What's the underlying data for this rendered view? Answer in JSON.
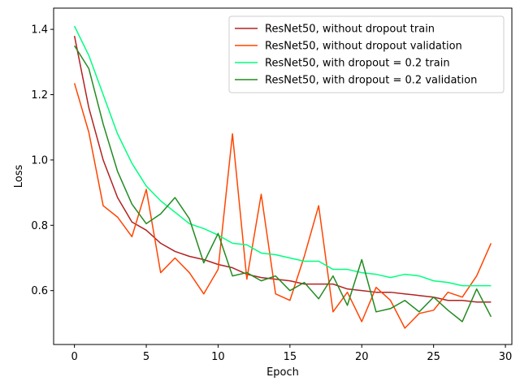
{
  "chart_data": {
    "type": "line",
    "title": "",
    "xlabel": "Epoch",
    "ylabel": "Loss",
    "xlim": [
      -1.45,
      30.45
    ],
    "ylim": [
      0.435,
      1.465
    ],
    "xticks": [
      0,
      5,
      10,
      15,
      20,
      25,
      30
    ],
    "yticks": [
      0.6,
      0.8,
      1.0,
      1.2,
      1.4
    ],
    "ytick_labels": [
      "0.6",
      "0.8",
      "1.0",
      "1.2",
      "1.4"
    ],
    "grid": false,
    "legend_position": "top-right",
    "x": [
      0,
      1,
      2,
      3,
      4,
      5,
      6,
      7,
      8,
      9,
      10,
      11,
      12,
      13,
      14,
      15,
      16,
      17,
      18,
      19,
      20,
      21,
      22,
      23,
      24,
      25,
      26,
      27,
      28,
      29
    ],
    "series": [
      {
        "name": "ResNet50, without dropout train",
        "color": "#b22222",
        "values": [
          1.38,
          1.16,
          1.0,
          0.885,
          0.81,
          0.785,
          0.745,
          0.72,
          0.705,
          0.695,
          0.68,
          0.67,
          0.65,
          0.64,
          0.635,
          0.63,
          0.62,
          0.62,
          0.62,
          0.605,
          0.6,
          0.595,
          0.595,
          0.59,
          0.585,
          0.58,
          0.57,
          0.57,
          0.565,
          0.565
        ]
      },
      {
        "name": "ResNet50, without dropout validation",
        "color": "#ff4500",
        "values": [
          1.235,
          1.085,
          0.86,
          0.825,
          0.765,
          0.91,
          0.655,
          0.7,
          0.655,
          0.59,
          0.665,
          1.08,
          0.635,
          0.895,
          0.59,
          0.57,
          0.705,
          0.86,
          0.535,
          0.595,
          0.505,
          0.61,
          0.57,
          0.485,
          0.53,
          0.54,
          0.595,
          0.58,
          0.645,
          0.745
        ]
      },
      {
        "name": "ResNet50, with dropout = 0.2 train",
        "color": "#00ff7f",
        "values": [
          1.41,
          1.32,
          1.2,
          1.08,
          0.99,
          0.92,
          0.875,
          0.84,
          0.805,
          0.79,
          0.77,
          0.745,
          0.74,
          0.715,
          0.71,
          0.7,
          0.69,
          0.69,
          0.665,
          0.665,
          0.655,
          0.65,
          0.64,
          0.65,
          0.645,
          0.63,
          0.625,
          0.615,
          0.615,
          0.615
        ]
      },
      {
        "name": "ResNet50, with dropout = 0.2 validation",
        "color": "#228b22",
        "values": [
          1.35,
          1.28,
          1.11,
          0.965,
          0.865,
          0.805,
          0.835,
          0.885,
          0.82,
          0.685,
          0.775,
          0.645,
          0.655,
          0.63,
          0.645,
          0.6,
          0.625,
          0.575,
          0.645,
          0.555,
          0.695,
          0.535,
          0.545,
          0.57,
          0.535,
          0.58,
          0.54,
          0.505,
          0.605,
          0.52
        ]
      }
    ]
  }
}
